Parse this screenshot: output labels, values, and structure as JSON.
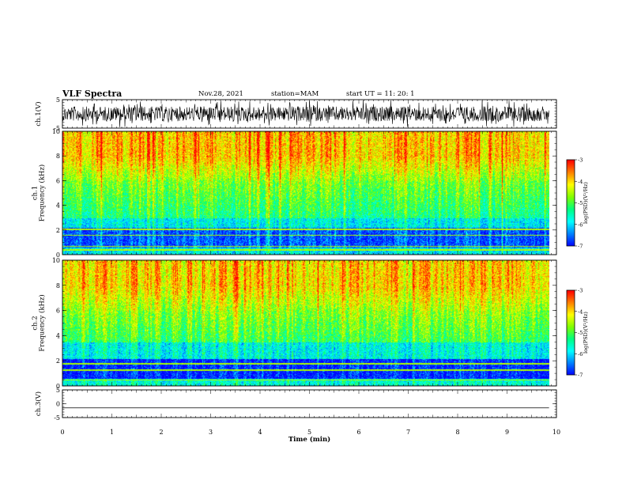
{
  "header": {
    "title": "VLF Spectra",
    "date": "Nov.28, 2021",
    "station": "station=MAM",
    "start": "start  UT =   11: 20: 1"
  },
  "colors": {
    "colormap": [
      "#000080",
      "#0000ff",
      "#0080ff",
      "#00ffff",
      "#00ff80",
      "#80ff00",
      "#ffff00",
      "#ff8000",
      "#ff0000",
      "#ffffff"
    ]
  },
  "chart_data": [
    {
      "type": "line",
      "id": "ch1-waveform",
      "ylabel": "ch.1(V)",
      "ylim": [
        -5,
        5
      ],
      "yticks": [
        "5",
        "-5"
      ],
      "description_of_signal": "dense noisy waveform",
      "xlim": [
        0,
        10
      ],
      "data_end_min": 9.85
    },
    {
      "type": "heatmap",
      "id": "ch1-spectrogram",
      "ylabel": "ch.1\nFrequency (kHz)",
      "ylim": [
        0,
        10
      ],
      "yticks": [
        "0",
        "2",
        "4",
        "6",
        "8",
        "10"
      ],
      "xlim": [
        0,
        10
      ],
      "data_end_min": 9.85,
      "colorbar": {
        "label": "log(PSD)(V²/Hz)",
        "range": [
          -7,
          -3
        ],
        "ticks": [
          "-3",
          "-4",
          "-5",
          "-6",
          "-7"
        ]
      }
    },
    {
      "type": "heatmap",
      "id": "ch2-spectrogram",
      "ylabel": "ch.2\nFrequency (kHz)",
      "ylim": [
        0,
        10
      ],
      "yticks": [
        "0",
        "2",
        "4",
        "6",
        "8",
        "10"
      ],
      "xlim": [
        0,
        10
      ],
      "data_end_min": 9.85,
      "colorbar": {
        "label": "log(PSD)(V²/Hz)",
        "range": [
          -7,
          -3
        ],
        "ticks": [
          "-3",
          "-4",
          "-5",
          "-6",
          "-7"
        ]
      }
    },
    {
      "type": "line",
      "id": "ch3-waveform",
      "ylabel": "ch.3(V)",
      "ylim": [
        -5,
        5
      ],
      "yticks": [
        "5",
        "0",
        "-5"
      ],
      "flat_value": -1.5,
      "xlim": [
        0,
        10
      ],
      "xlabel": "Time (min)",
      "xticks": [
        "0",
        "1",
        "2",
        "3",
        "4",
        "5",
        "6",
        "7",
        "8",
        "9",
        "10"
      ]
    }
  ]
}
